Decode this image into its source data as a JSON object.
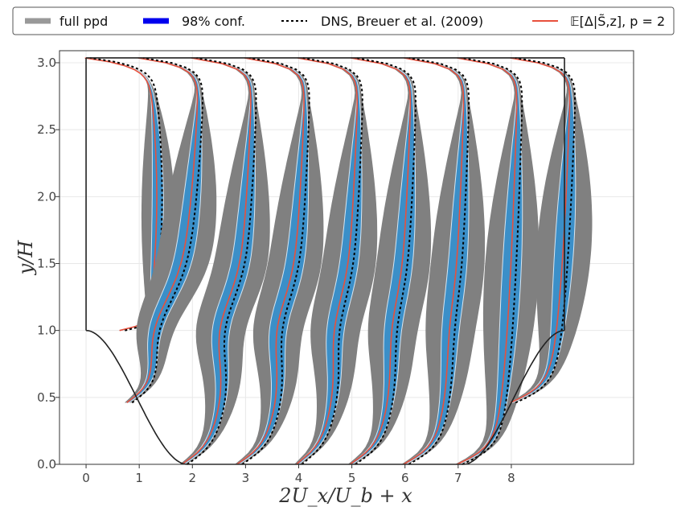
{
  "chart_data": {
    "type": "line",
    "title": "",
    "xlabel": "2U_x/U_b + x",
    "ylabel": "y/H",
    "x_ticks": [
      "0",
      "1",
      "2",
      "3",
      "4",
      "5",
      "6",
      "7",
      "8"
    ],
    "y_ticks": [
      "0.0",
      "0.5",
      "1.0",
      "1.5",
      "2.0",
      "2.5",
      "3.0"
    ],
    "xlim": [
      -0.5,
      10.3
    ],
    "ylim": [
      0,
      3.09
    ],
    "grid": true,
    "legend": {
      "placement": "top",
      "entries": [
        {
          "label": "full ppd",
          "color": "#999999",
          "style": "thick-line"
        },
        {
          "label": "98% conf.",
          "color": "#0000ee",
          "style": "thick-line"
        },
        {
          "label": "DNS, Breuer et al. (2009)",
          "color": "#000000",
          "style": "dotted"
        },
        {
          "label": "𝔼[Δ|S̃,z],  p = 2",
          "color": "#e8503c",
          "style": "line"
        }
      ]
    },
    "colors": {
      "ppd": "#808080",
      "conf": "#3b8fc8",
      "conf_edge": "#d6e6f2",
      "mean": "#e8503c",
      "dns": "#000000",
      "geometry": "#222222",
      "grid": "#e8e8e8"
    },
    "stations": [
      0,
      1,
      2,
      3,
      4,
      5,
      6,
      7,
      8
    ],
    "hill": {
      "top": 3.036,
      "crest": 1.0,
      "left_foot_x": 1.9,
      "right_foot_x": 7.1,
      "right_crest_x": 9.0
    }
  }
}
